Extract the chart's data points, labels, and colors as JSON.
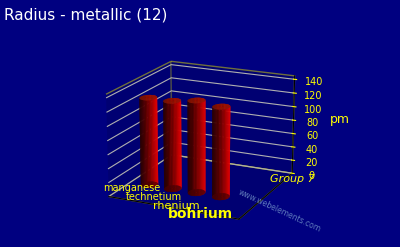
{
  "title": "Radius - metallic (12)",
  "elements": [
    "manganese",
    "technetium",
    "rhenium",
    "bohrium"
  ],
  "values": [
    127,
    127,
    132,
    128
  ],
  "ylabel": "pm",
  "ymax": 140,
  "yticks": [
    0,
    20,
    40,
    60,
    80,
    100,
    120,
    140
  ],
  "bar_color_top": "#ff3300",
  "bar_color_side": "#dd1100",
  "bar_color_dark": "#990000",
  "background_color": "#000080",
  "grid_color": "#dddd00",
  "label_color": "#ffff00",
  "title_color": "#ffffff",
  "watermark": "www.webelements.com",
  "group_label": "Group 7",
  "title_fontsize": 11,
  "label_fontsize": 8,
  "label_sizes": [
    7,
    7,
    8,
    10
  ],
  "label_weights": [
    "normal",
    "normal",
    "normal",
    "bold"
  ]
}
